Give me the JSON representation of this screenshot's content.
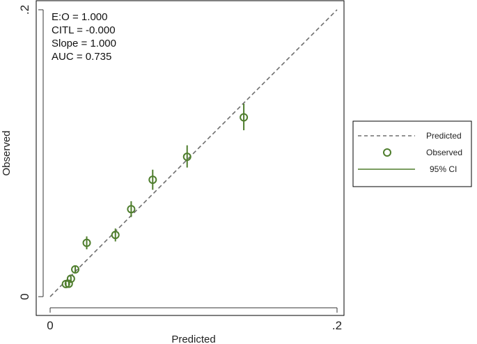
{
  "chart_data": {
    "type": "scatter",
    "title": "",
    "xlabel": "Predicted",
    "ylabel": "Observed",
    "xlim": [
      0,
      0.2
    ],
    "ylim": [
      0,
      0.2
    ],
    "x_ticks": [
      {
        "value": 0,
        "label": "0"
      },
      {
        "value": 0.2,
        "label": ".2"
      }
    ],
    "y_ticks": [
      {
        "value": 0,
        "label": "0"
      },
      {
        "value": 0.2,
        "label": ".2"
      }
    ],
    "grid": false,
    "legend_position": "right",
    "stats": [
      "E:O = 1.000",
      "CITL = -0.000",
      "Slope = 1.000",
      "AUC = 0.735"
    ],
    "series": [
      {
        "name": "Predicted",
        "kind": "reference-line",
        "style": "dashed",
        "color": "#6e6e6e",
        "x": [
          0,
          0.2
        ],
        "y": [
          0,
          0.2
        ]
      },
      {
        "name": "Observed",
        "kind": "points",
        "color": "#4e7d2c",
        "points": [
          {
            "x": 0.011,
            "y": 0.0088,
            "lo": 0.0078,
            "hi": 0.0098
          },
          {
            "x": 0.013,
            "y": 0.009,
            "lo": 0.008,
            "hi": 0.01
          },
          {
            "x": 0.0145,
            "y": 0.0125,
            "lo": 0.011,
            "hi": 0.014
          },
          {
            "x": 0.0175,
            "y": 0.019,
            "lo": 0.017,
            "hi": 0.021
          },
          {
            "x": 0.0255,
            "y": 0.0375,
            "lo": 0.033,
            "hi": 0.042
          },
          {
            "x": 0.0455,
            "y": 0.043,
            "lo": 0.0385,
            "hi": 0.0475
          },
          {
            "x": 0.0565,
            "y": 0.061,
            "lo": 0.0555,
            "hi": 0.0665
          },
          {
            "x": 0.0715,
            "y": 0.0815,
            "lo": 0.0745,
            "hi": 0.0885
          },
          {
            "x": 0.0955,
            "y": 0.0975,
            "lo": 0.09,
            "hi": 0.1055
          },
          {
            "x": 0.135,
            "y": 0.125,
            "lo": 0.116,
            "hi": 0.1345
          }
        ]
      },
      {
        "name": "95% CI",
        "kind": "error-bars",
        "color": "#4e7d2c"
      }
    ]
  }
}
